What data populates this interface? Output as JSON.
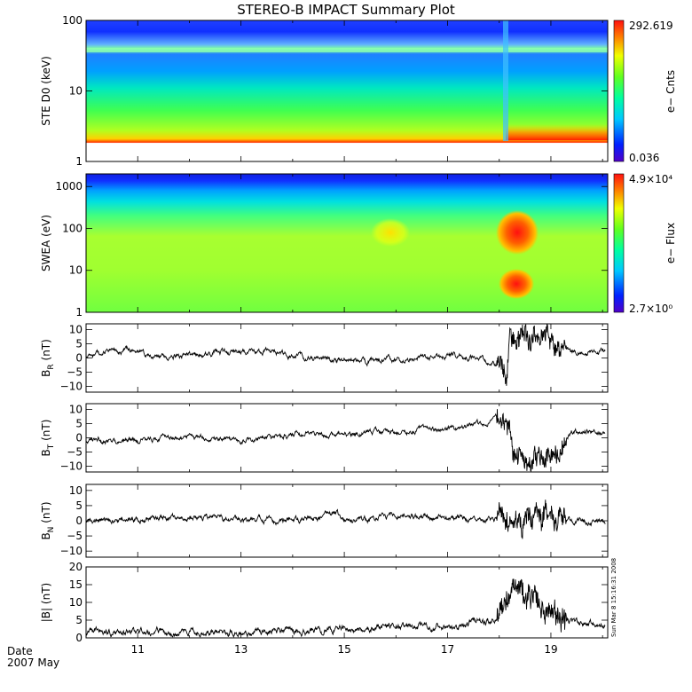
{
  "title": "STEREO-B IMPACT Summary Plot",
  "stamp": "Sun Mar  8 15:16:31 2008",
  "date_label": "Date",
  "date_sub": "2007 May",
  "chart_data": [
    {
      "type": "heatmap",
      "ylabel": "STE D0 (keV)",
      "yscale": "log",
      "ylim": [
        1,
        100
      ],
      "yticks": [
        "1",
        "10",
        "100"
      ],
      "colorbar_label": "e− Cnts",
      "colorbar_max": "292.619",
      "colorbar_min": "0.036"
    },
    {
      "type": "heatmap",
      "ylabel": "SWEA (eV)",
      "yscale": "log",
      "ylim": [
        1,
        2000
      ],
      "yticks": [
        "1",
        "10",
        "100",
        "1000"
      ],
      "colorbar_label": "e− Flux",
      "colorbar_max": "4.9×10⁴",
      "colorbar_min": "2.7×10⁰"
    },
    {
      "type": "line",
      "ylabel": "B_R (nT)",
      "ylabel_main": "B",
      "ylabel_sub": "R",
      "ylabel_unit": "(nT)",
      "ylim": [
        -12,
        12
      ],
      "yticks": [
        "10",
        "5",
        "0",
        "−5",
        "−10"
      ],
      "key": [
        {
          "x": 10.0,
          "y": 1
        },
        {
          "x": 10.5,
          "y": 2
        },
        {
          "x": 10.8,
          "y": 3
        },
        {
          "x": 11.2,
          "y": 1
        },
        {
          "x": 11.6,
          "y": 0
        },
        {
          "x": 12.0,
          "y": 1
        },
        {
          "x": 12.5,
          "y": 2
        },
        {
          "x": 13.0,
          "y": 2
        },
        {
          "x": 13.5,
          "y": 2
        },
        {
          "x": 14.0,
          "y": 1
        },
        {
          "x": 14.5,
          "y": 0
        },
        {
          "x": 15.0,
          "y": -1
        },
        {
          "x": 15.5,
          "y": -1
        },
        {
          "x": 16.0,
          "y": -1
        },
        {
          "x": 16.5,
          "y": 0
        },
        {
          "x": 17.0,
          "y": 1
        },
        {
          "x": 17.5,
          "y": 0
        },
        {
          "x": 17.9,
          "y": -2
        },
        {
          "x": 18.0,
          "y": -4
        },
        {
          "x": 18.1,
          "y": -7
        },
        {
          "x": 18.15,
          "y": -9
        },
        {
          "x": 18.2,
          "y": 5
        },
        {
          "x": 18.3,
          "y": 9
        },
        {
          "x": 18.5,
          "y": 8
        },
        {
          "x": 18.7,
          "y": 6
        },
        {
          "x": 18.9,
          "y": 7
        },
        {
          "x": 19.1,
          "y": 4
        },
        {
          "x": 19.4,
          "y": 3
        },
        {
          "x": 19.7,
          "y": 2
        },
        {
          "x": 20.0,
          "y": 2
        }
      ]
    },
    {
      "type": "line",
      "ylabel": "B_T (nT)",
      "ylabel_main": "B",
      "ylabel_sub": "T",
      "ylabel_unit": "(nT)",
      "ylim": [
        -12,
        12
      ],
      "yticks": [
        "10",
        "5",
        "0",
        "−5",
        "−10"
      ],
      "key": [
        {
          "x": 10.0,
          "y": -1
        },
        {
          "x": 10.5,
          "y": -1
        },
        {
          "x": 11.0,
          "y": -1
        },
        {
          "x": 11.5,
          "y": 0
        },
        {
          "x": 12.0,
          "y": 0
        },
        {
          "x": 12.5,
          "y": 0
        },
        {
          "x": 13.0,
          "y": -1
        },
        {
          "x": 13.5,
          "y": 0
        },
        {
          "x": 14.0,
          "y": 1
        },
        {
          "x": 14.5,
          "y": 1
        },
        {
          "x": 15.0,
          "y": 1
        },
        {
          "x": 15.5,
          "y": 2
        },
        {
          "x": 16.0,
          "y": 2
        },
        {
          "x": 16.5,
          "y": 3
        },
        {
          "x": 17.0,
          "y": 3
        },
        {
          "x": 17.5,
          "y": 4
        },
        {
          "x": 17.9,
          "y": 6
        },
        {
          "x": 18.1,
          "y": 7
        },
        {
          "x": 18.2,
          "y": 4
        },
        {
          "x": 18.3,
          "y": -6
        },
        {
          "x": 18.5,
          "y": -9
        },
        {
          "x": 18.8,
          "y": -8
        },
        {
          "x": 19.0,
          "y": -6
        },
        {
          "x": 19.2,
          "y": -4
        },
        {
          "x": 19.4,
          "y": 2
        },
        {
          "x": 19.7,
          "y": 3
        },
        {
          "x": 20.0,
          "y": 1
        }
      ]
    },
    {
      "type": "line",
      "ylabel": "B_N (nT)",
      "ylabel_main": "B",
      "ylabel_sub": "N",
      "ylabel_unit": "(nT)",
      "ylim": [
        -12,
        12
      ],
      "yticks": [
        "10",
        "5",
        "0",
        "−5",
        "−10"
      ],
      "key": [
        {
          "x": 10.0,
          "y": 0
        },
        {
          "x": 10.5,
          "y": 0
        },
        {
          "x": 11.0,
          "y": 0
        },
        {
          "x": 11.5,
          "y": 1
        },
        {
          "x": 12.0,
          "y": 1
        },
        {
          "x": 12.5,
          "y": 1
        },
        {
          "x": 13.0,
          "y": 0
        },
        {
          "x": 13.5,
          "y": 0
        },
        {
          "x": 14.0,
          "y": 0
        },
        {
          "x": 14.5,
          "y": 1
        },
        {
          "x": 14.8,
          "y": 3
        },
        {
          "x": 15.0,
          "y": 0
        },
        {
          "x": 15.5,
          "y": 1
        },
        {
          "x": 16.0,
          "y": 2
        },
        {
          "x": 16.5,
          "y": 1
        },
        {
          "x": 17.0,
          "y": 1
        },
        {
          "x": 17.5,
          "y": 0
        },
        {
          "x": 17.9,
          "y": 0
        },
        {
          "x": 18.0,
          "y": 2
        },
        {
          "x": 18.3,
          "y": -1
        },
        {
          "x": 18.6,
          "y": 0
        },
        {
          "x": 18.9,
          "y": 1
        },
        {
          "x": 19.2,
          "y": 0
        },
        {
          "x": 19.5,
          "y": 0
        },
        {
          "x": 20.0,
          "y": 0
        }
      ]
    },
    {
      "type": "line",
      "ylabel": "|B| (nT)",
      "ylabel_main": "|B|",
      "ylabel_sub": "",
      "ylabel_unit": "(nT)",
      "ylim": [
        0,
        20
      ],
      "yticks": [
        "20",
        "15",
        "10",
        "5",
        "0"
      ],
      "key": [
        {
          "x": 10.0,
          "y": 2
        },
        {
          "x": 10.5,
          "y": 1.5
        },
        {
          "x": 11.0,
          "y": 1.5
        },
        {
          "x": 11.5,
          "y": 1.5
        },
        {
          "x": 12.0,
          "y": 2
        },
        {
          "x": 12.5,
          "y": 1.5
        },
        {
          "x": 13.0,
          "y": 1.5
        },
        {
          "x": 13.5,
          "y": 2
        },
        {
          "x": 14.0,
          "y": 2
        },
        {
          "x": 14.5,
          "y": 2
        },
        {
          "x": 15.0,
          "y": 2.5
        },
        {
          "x": 15.5,
          "y": 3
        },
        {
          "x": 16.0,
          "y": 3
        },
        {
          "x": 16.5,
          "y": 3
        },
        {
          "x": 17.0,
          "y": 3
        },
        {
          "x": 17.5,
          "y": 4
        },
        {
          "x": 17.9,
          "y": 5
        },
        {
          "x": 18.0,
          "y": 7
        },
        {
          "x": 18.2,
          "y": 11
        },
        {
          "x": 18.4,
          "y": 15
        },
        {
          "x": 18.6,
          "y": 13
        },
        {
          "x": 18.8,
          "y": 10
        },
        {
          "x": 19.0,
          "y": 7
        },
        {
          "x": 19.3,
          "y": 5
        },
        {
          "x": 19.6,
          "y": 4
        },
        {
          "x": 20.0,
          "y": 3
        }
      ]
    }
  ],
  "time_axis": {
    "xlim": [
      10,
      20.1
    ],
    "ticks": [
      {
        "value": 11,
        "label": "11"
      },
      {
        "value": 13,
        "label": "13"
      },
      {
        "value": 15,
        "label": "15"
      },
      {
        "value": 17,
        "label": "17"
      },
      {
        "value": 19,
        "label": "19"
      }
    ]
  }
}
